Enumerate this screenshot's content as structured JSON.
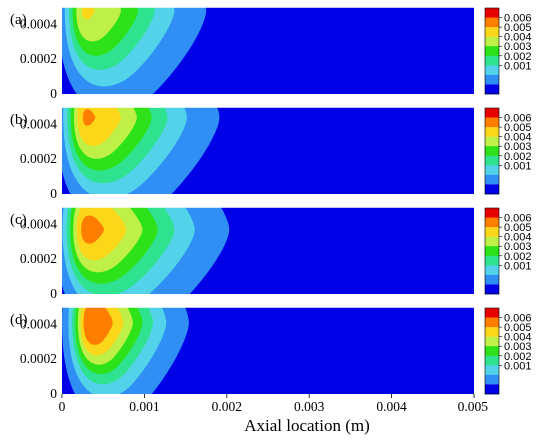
{
  "chart_data": {
    "type": "heatmap",
    "xlabel": "Axial location (m)",
    "ylabel": "",
    "xlim": [
      0,
      0.005
    ],
    "ylim": [
      0,
      0.0005
    ],
    "x_ticks": [
      "0",
      "0.001",
      "0.002",
      "0.003",
      "0.004",
      "0.005"
    ],
    "x_tick_values": [
      0,
      0.001,
      0.002,
      0.003,
      0.004,
      0.005
    ],
    "y_ticks": [
      "0.0004",
      "0.0002",
      "0"
    ],
    "y_tick_values": [
      0.0004,
      0.0002,
      0
    ],
    "colorbar_ticks": [
      "0.006",
      "0.005",
      "0.004",
      "0.003",
      "0.002",
      "0.001"
    ],
    "colorbar_tick_values": [
      0.006,
      0.005,
      0.004,
      0.003,
      0.002,
      0.001
    ],
    "levels": [
      0.0005,
      0.0015,
      0.0025,
      0.0035,
      0.0045,
      0.0055,
      0.0065
    ],
    "colors": [
      "#0000e6",
      "#2f8ff5",
      "#53d3ea",
      "#2fe28f",
      "#2ee21a",
      "#bef048",
      "#fcd719",
      "#ff7e00",
      "#e60000"
    ],
    "reference_line_y": 0.0005,
    "panels": [
      {
        "label": "(a)",
        "peak": 0.0056,
        "center_x": 0.00027,
        "center_y": 0.00048,
        "extent_x": 0.00148,
        "extent_y": 0.00068,
        "back_extent_x": 0.00032
      },
      {
        "label": "(b)",
        "peak": 0.0066,
        "center_x": 0.00028,
        "center_y": 0.00044,
        "extent_x": 0.00163,
        "extent_y": 0.00071,
        "back_extent_x": 0.00035
      },
      {
        "label": "(c)",
        "peak": 0.0068,
        "center_x": 0.00028,
        "center_y": 0.00037,
        "extent_x": 0.00175,
        "extent_y": 0.00071,
        "back_extent_x": 0.00036
      },
      {
        "label": "(d)",
        "peak": 0.0075,
        "center_x": 0.00034,
        "center_y": 0.00041,
        "extent_x": 0.0012,
        "extent_y": 0.00064,
        "back_extent_x": 0.00034
      }
    ]
  }
}
